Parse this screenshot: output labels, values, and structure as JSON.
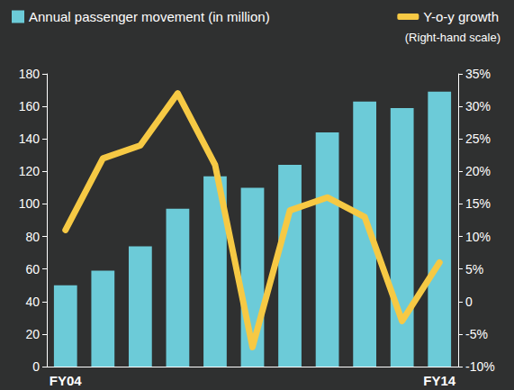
{
  "chart_data": {
    "type": "bar",
    "categories": [
      "FY04",
      null,
      null,
      null,
      null,
      null,
      null,
      null,
      null,
      null,
      "FY14"
    ],
    "series": [
      {
        "name": "Annual passenger movement (in million)",
        "type": "bar",
        "color": "#6ccbd8",
        "values": [
          50,
          59,
          74,
          97,
          117,
          110,
          124,
          144,
          163,
          159,
          169
        ]
      },
      {
        "name": "Y-o-y growth",
        "type": "line",
        "color": "#f6c944",
        "axis": "y2",
        "values": [
          11,
          22,
          24,
          32,
          21,
          -7,
          14,
          16,
          13,
          -3,
          6
        ]
      }
    ],
    "ylim": [
      0,
      180
    ],
    "yticks": [
      0,
      20,
      40,
      60,
      80,
      100,
      120,
      140,
      160,
      180
    ],
    "y2lim": [
      -10,
      35
    ],
    "y2ticks": [
      {
        "value": -10,
        "label": "-10%"
      },
      {
        "value": -5,
        "label": "-5%"
      },
      0,
      {
        "value": 5,
        "label": "5%"
      },
      {
        "value": 10,
        "label": "10%"
      },
      {
        "value": 15,
        "label": "15%"
      },
      {
        "value": 20,
        "label": "20%"
      },
      {
        "value": 25,
        "label": "25%"
      },
      {
        "value": 30,
        "label": "30%"
      },
      {
        "value": 35,
        "label": "35%"
      }
    ],
    "y2label": "(Right-hand scale)",
    "grid": false,
    "legend": "top"
  }
}
